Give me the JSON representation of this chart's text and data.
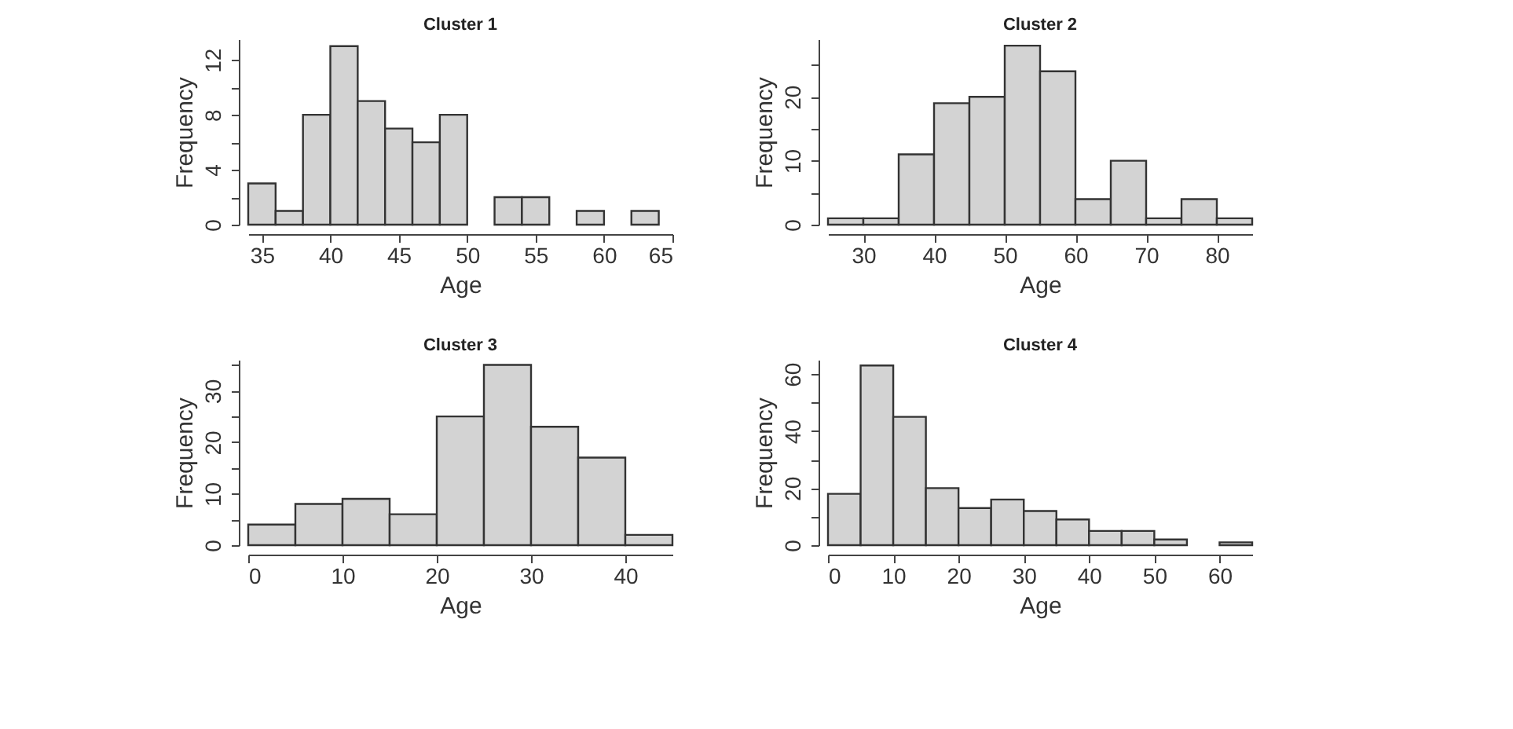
{
  "chart_data": [
    {
      "type": "histogram",
      "title": "Cluster 1",
      "xlabel": "Age",
      "ylabel": "Frequency",
      "color": "#d3d3d3",
      "bins": [
        34,
        36,
        38,
        40,
        42,
        44,
        46,
        48,
        50,
        52,
        54,
        56,
        58,
        60,
        62,
        64
      ],
      "values": [
        3,
        1,
        8,
        13,
        9,
        7,
        6,
        8,
        0,
        2,
        2,
        0,
        1,
        0,
        1
      ],
      "xlim": [
        34,
        65
      ],
      "ylim": [
        0,
        13.5
      ],
      "xticks": [
        35,
        40,
        45,
        50,
        55,
        60,
        65
      ],
      "yticks": [
        0,
        {
          "value": 2,
          "label": null
        },
        4,
        {
          "value": 6,
          "label": null
        },
        8,
        {
          "value": 10,
          "label": null
        },
        12
      ]
    },
    {
      "type": "histogram",
      "title": "Cluster 2",
      "xlabel": "Age",
      "ylabel": "Frequency",
      "color": "#d3d3d3",
      "bins": [
        25,
        30,
        35,
        40,
        45,
        50,
        55,
        60,
        65,
        70,
        75,
        80,
        85
      ],
      "values": [
        1,
        1,
        11,
        19,
        20,
        28,
        24,
        4,
        10,
        1,
        4,
        1
      ],
      "xlim": [
        25,
        85
      ],
      "ylim": [
        0,
        29
      ],
      "xticks": [
        30,
        40,
        50,
        60,
        70,
        80
      ],
      "yticks": [
        0,
        {
          "value": 5,
          "label": null
        },
        10,
        {
          "value": 15,
          "label": null
        },
        20,
        {
          "value": 25,
          "label": null
        }
      ]
    },
    {
      "type": "histogram",
      "title": "Cluster 3",
      "xlabel": "Age",
      "ylabel": "Frequency",
      "color": "#d3d3d3",
      "bins": [
        0,
        5,
        10,
        15,
        20,
        25,
        30,
        35,
        40,
        45
      ],
      "values": [
        4,
        8,
        9,
        6,
        25,
        35,
        23,
        17,
        2
      ],
      "xlim": [
        0,
        45
      ],
      "ylim": [
        0,
        36
      ],
      "xticks": [
        0,
        10,
        20,
        30,
        40
      ],
      "yticks": [
        0,
        {
          "value": 5,
          "label": null
        },
        10,
        {
          "value": 15,
          "label": null
        },
        20,
        {
          "value": 25,
          "label": null
        },
        30,
        {
          "value": 35,
          "label": null
        }
      ]
    },
    {
      "type": "histogram",
      "title": "Cluster 4",
      "xlabel": "Age",
      "ylabel": "Frequency",
      "color": "#d3d3d3",
      "bins": [
        0,
        5,
        10,
        15,
        20,
        25,
        30,
        35,
        40,
        45,
        50,
        55,
        60,
        65
      ],
      "values": [
        18,
        63,
        45,
        20,
        13,
        16,
        12,
        9,
        5,
        5,
        2,
        0,
        1
      ],
      "xlim": [
        0,
        65
      ],
      "ylim": [
        0,
        65
      ],
      "xticks": [
        0,
        10,
        20,
        30,
        40,
        50,
        60
      ],
      "yticks": [
        0,
        {
          "value": 10,
          "label": null
        },
        20,
        {
          "value": 30,
          "label": null
        },
        40,
        {
          "value": 50,
          "label": null
        },
        60
      ]
    }
  ]
}
